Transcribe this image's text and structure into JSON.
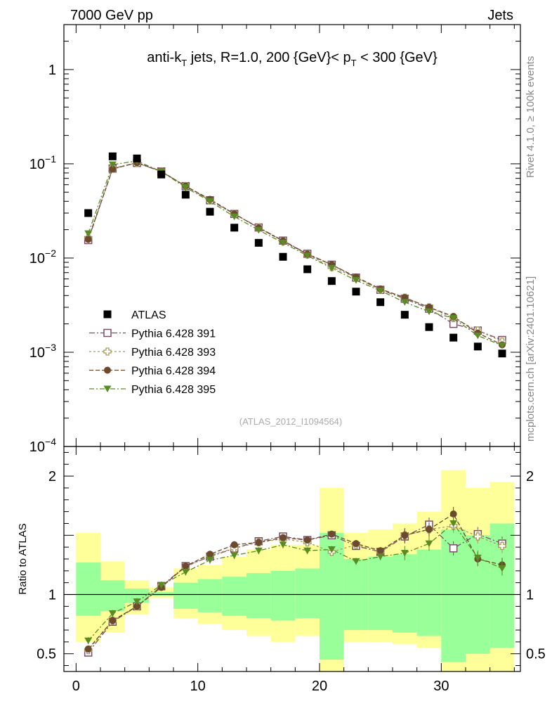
{
  "header": {
    "left": "7000 GeV pp",
    "right": "Jets"
  },
  "side_labels": {
    "top": "Rivet 4.1.0, ≥ 100k events",
    "bottom": "mcplots.cern.ch [arXiv:2401.10621]"
  },
  "chart_data": {
    "type": "scatter",
    "title": "anti-k_T jets, R=1.0, 200 {GeV}< p_T < 300 {GeV}",
    "title_parts": {
      "a": "anti-k",
      "sub1": "T",
      "b": " jets, R=1.0, 200 {GeV}< p",
      "sub2": "T",
      "c": " < 300 {GeV}"
    },
    "watermark": "(ATLAS_2012_I1094564)",
    "ratio_ylabel": "Ratio to ATLAS",
    "yscale": "log",
    "ylim": [
      0.0001,
      3
    ],
    "ratio_ylim": [
      0.35,
      2.25
    ],
    "xlim": [
      -1,
      36.5
    ],
    "legend_position": "lower-left",
    "x_ticks": [
      "0",
      "10",
      "20",
      "30"
    ],
    "y_ticks": [
      {
        "base": "10",
        "exp": "−4"
      },
      {
        "base": "10",
        "exp": "−3"
      },
      {
        "base": "10",
        "exp": "−2"
      },
      {
        "base": "10",
        "exp": "−1"
      },
      {
        "base": "1",
        "exp": ""
      }
    ],
    "ratio_ticks": [
      "0.5",
      "1",
      "2"
    ],
    "x": [
      1,
      3,
      5,
      7,
      9,
      11,
      13,
      15,
      17,
      19,
      21,
      23,
      25,
      27,
      29,
      31,
      33,
      35
    ],
    "data": {
      "name": "ATLAS",
      "values": [
        0.03,
        0.12,
        0.114,
        0.077,
        0.047,
        0.031,
        0.021,
        0.0145,
        0.0103,
        0.0076,
        0.0057,
        0.0044,
        0.0034,
        0.0025,
        0.00185,
        0.00143,
        0.00115,
        0.00097
      ]
    },
    "ratio_bands": {
      "yellow_low": [
        0.6,
        0.68,
        0.83,
        0.97,
        0.8,
        0.75,
        0.7,
        0.65,
        0.6,
        0.65,
        0.3,
        0.6,
        0.6,
        0.58,
        0.55,
        0.3,
        0.3,
        0.3
      ],
      "yellow_high": [
        1.52,
        1.28,
        1.12,
        1.06,
        1.22,
        1.25,
        1.32,
        1.38,
        1.42,
        1.42,
        1.9,
        1.52,
        1.55,
        1.6,
        1.7,
        2.05,
        1.9,
        1.95
      ],
      "green_low": [
        0.82,
        0.86,
        0.93,
        0.99,
        0.88,
        0.85,
        0.82,
        0.8,
        0.78,
        0.8,
        0.45,
        0.7,
        0.7,
        0.68,
        0.65,
        0.43,
        0.5,
        0.55
      ],
      "green_high": [
        1.27,
        1.12,
        1.05,
        1.02,
        1.1,
        1.13,
        1.15,
        1.18,
        1.2,
        1.22,
        1.52,
        1.3,
        1.32,
        1.34,
        1.38,
        1.55,
        1.5,
        1.6
      ]
    },
    "series": [
      {
        "name": "Pythia 6.428 391",
        "marker": "open-square",
        "color": "#7b4e68",
        "dash": "8,3,2,3",
        "values": [
          0.0155,
          0.089,
          0.102,
          0.083,
          0.058,
          0.041,
          0.0294,
          0.0211,
          0.0153,
          0.0111,
          0.0085,
          0.0062,
          0.0046,
          0.0037,
          0.0029,
          0.002,
          0.0017,
          0.00135
        ],
        "ratio": [
          0.51,
          0.77,
          0.9,
          1.07,
          1.24,
          1.32,
          1.39,
          1.45,
          1.49,
          1.46,
          1.5,
          1.41,
          1.36,
          1.49,
          1.59,
          1.39,
          1.51,
          1.43
        ]
      },
      {
        "name": "Pythia 6.428 393",
        "marker": "open-cross",
        "color": "#a89a5c",
        "dash": "3,3",
        "values": [
          0.0162,
          0.09,
          0.102,
          0.083,
          0.058,
          0.041,
          0.0293,
          0.021,
          0.015,
          0.0109,
          0.008,
          0.0062,
          0.0046,
          0.0038,
          0.003,
          0.0023,
          0.0017,
          0.0013
        ],
        "ratio": [
          0.53,
          0.78,
          0.9,
          1.07,
          1.23,
          1.33,
          1.39,
          1.44,
          1.47,
          1.44,
          1.36,
          1.42,
          1.36,
          1.5,
          1.55,
          1.58,
          1.49,
          1.41
        ]
      },
      {
        "name": "Pythia 6.428 394",
        "marker": "filled-circle",
        "color": "#6b4a2e",
        "dash": "6,3",
        "values": [
          0.0158,
          0.088,
          0.103,
          0.083,
          0.058,
          0.042,
          0.0295,
          0.0209,
          0.0152,
          0.011,
          0.0085,
          0.0063,
          0.0047,
          0.0038,
          0.003,
          0.0024,
          0.0016,
          0.0012
        ],
        "ratio": [
          0.54,
          0.78,
          0.9,
          1.06,
          1.24,
          1.34,
          1.42,
          1.44,
          1.48,
          1.46,
          1.51,
          1.43,
          1.37,
          1.5,
          1.55,
          1.68,
          1.3,
          1.25
        ]
      },
      {
        "name": "Pythia 6.428 395",
        "marker": "filled-triangle-down",
        "color": "#5a8c23",
        "dash": "7,3,2,3",
        "values": [
          0.0182,
          0.098,
          0.107,
          0.083,
          0.056,
          0.04,
          0.0275,
          0.0198,
          0.0145,
          0.0106,
          0.0078,
          0.0058,
          0.0045,
          0.0034,
          0.0027,
          0.0023,
          0.0015,
          0.00118
        ],
        "ratio": [
          0.61,
          0.84,
          0.94,
          1.08,
          1.19,
          1.29,
          1.33,
          1.37,
          1.42,
          1.37,
          1.38,
          1.28,
          1.32,
          1.35,
          1.43,
          1.6,
          1.31,
          1.22
        ]
      }
    ]
  }
}
